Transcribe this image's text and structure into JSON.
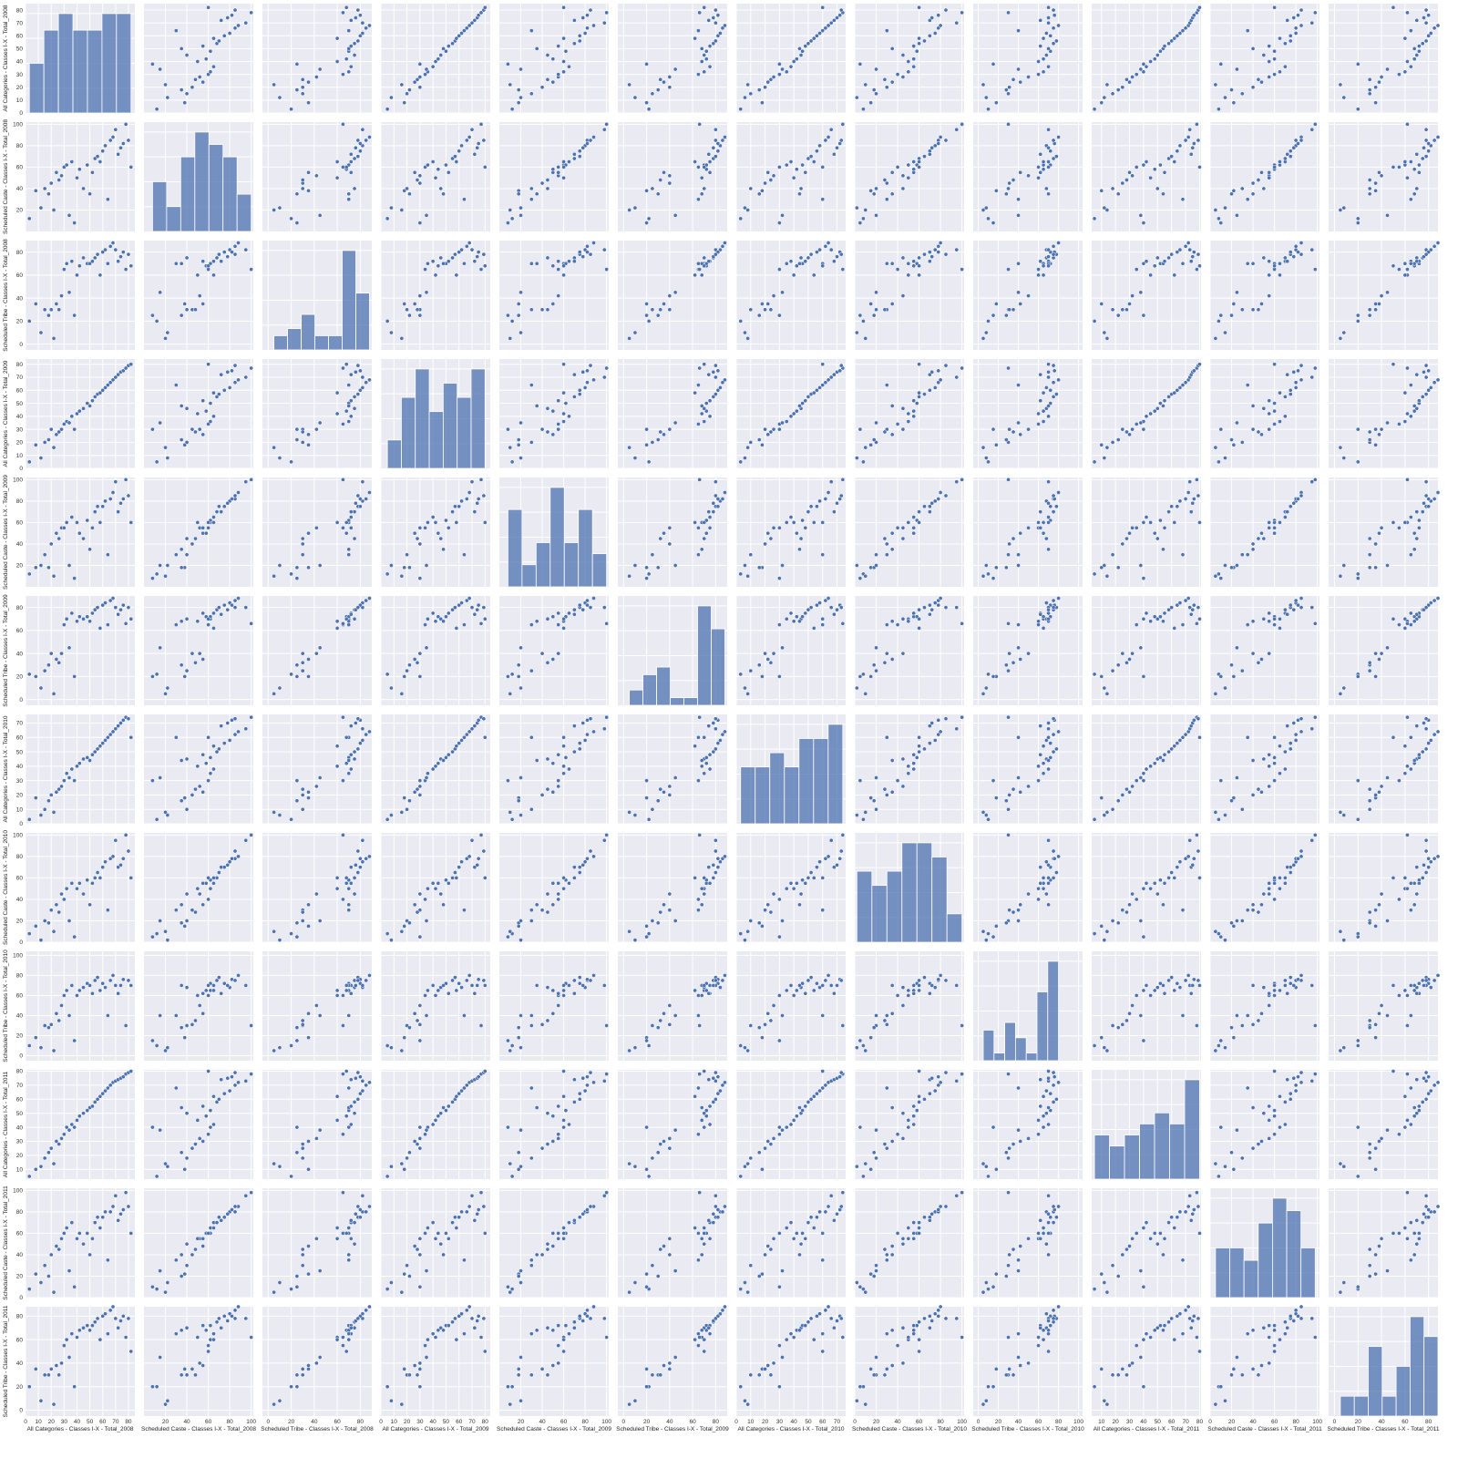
{
  "chart_data": {
    "type": "scatter",
    "title": "",
    "diag_kind": "histogram",
    "grid": true,
    "variables": [
      {
        "label": "All Categories - Classes I-X - Total_2008",
        "lim": [
          0,
          85
        ],
        "ticks": [
          0,
          10,
          20,
          30,
          40,
          50,
          60,
          70,
          80
        ]
      },
      {
        "label": "Scheduled Caste - Classes I-X - Total_2008",
        "lim": [
          0,
          102
        ],
        "ticks": [
          20,
          40,
          60,
          80,
          100
        ]
      },
      {
        "label": "Scheduled Tribe - Classes I-X - Total_2008",
        "lim": [
          -5,
          90
        ],
        "ticks": [
          0,
          20,
          40,
          60,
          80
        ]
      },
      {
        "label": "All Categories - Classes I-X - Total_2009",
        "lim": [
          0,
          84
        ],
        "ticks": [
          0,
          10,
          20,
          30,
          40,
          50,
          60,
          70,
          80
        ]
      },
      {
        "label": "Scheduled Caste - Classes I-X - Total_2009",
        "lim": [
          0,
          102
        ],
        "ticks": [
          20,
          40,
          60,
          80,
          100
        ]
      },
      {
        "label": "Scheduled Tribe - Classes I-X - Total_2009",
        "lim": [
          -5,
          90
        ],
        "ticks": [
          0,
          20,
          40,
          60,
          80
        ]
      },
      {
        "label": "All Categories - Classes I-X - Total_2010",
        "lim": [
          0,
          76
        ],
        "ticks": [
          0,
          10,
          20,
          30,
          40,
          50,
          60,
          70
        ]
      },
      {
        "label": "Scheduled Caste - Classes I-X - Total_2010",
        "lim": [
          0,
          102
        ],
        "ticks": [
          0,
          20,
          40,
          60,
          80,
          100
        ]
      },
      {
        "label": "Scheduled Tribe - Classes I-X - Total_2010",
        "lim": [
          -5,
          104
        ],
        "ticks": [
          0,
          20,
          40,
          60,
          80,
          100
        ]
      },
      {
        "label": "All Categories - Classes I-X - Total_2011",
        "lim": [
          3,
          81
        ],
        "ticks": [
          10,
          20,
          30,
          40,
          50,
          60,
          70,
          80
        ]
      },
      {
        "label": "Scheduled Caste - Classes I-X - Total_2011",
        "lim": [
          0,
          102
        ],
        "ticks": [
          0,
          20,
          40,
          60,
          80,
          100
        ]
      },
      {
        "label": "Scheduled Tribe - Classes I-X - Total_2011",
        "lim": [
          -5,
          88
        ],
        "ticks": [
          0,
          20,
          40,
          60,
          80
        ]
      }
    ],
    "data": [
      [
        3,
        12,
        20,
        5,
        12,
        22,
        3,
        8,
        10,
        5,
        8,
        20
      ],
      [
        8,
        38,
        35,
        18,
        18,
        20,
        18,
        15,
        18,
        10,
        22,
        35
      ],
      [
        12,
        22,
        10,
        8,
        20,
        10,
        6,
        2,
        8,
        12,
        14,
        8
      ],
      [
        15,
        40,
        30,
        20,
        30,
        25,
        10,
        20,
        30,
        18,
        30,
        30
      ],
      [
        18,
        35,
        25,
        22,
        18,
        30,
        16,
        18,
        28,
        22,
        20,
        30
      ],
      [
        20,
        45,
        30,
        30,
        40,
        40,
        20,
        30,
        31,
        25,
        40,
        35
      ],
      [
        22,
        20,
        5,
        16,
        10,
        5,
        8,
        10,
        5,
        14,
        5,
        5
      ],
      [
        24,
        55,
        35,
        26,
        50,
        35,
        22,
        35,
        42,
        30,
        48,
        38
      ],
      [
        26,
        48,
        30,
        28,
        45,
        32,
        24,
        28,
        35,
        28,
        45,
        30
      ],
      [
        28,
        52,
        42,
        30,
        55,
        40,
        26,
        45,
        50,
        32,
        55,
        40
      ],
      [
        30,
        60,
        65,
        34,
        55,
        65,
        30,
        40,
        60,
        35,
        60,
        55
      ],
      [
        32,
        62,
        70,
        36,
        60,
        70,
        35,
        50,
        65,
        40,
        65,
        60
      ],
      [
        34,
        15,
        45,
        35,
        20,
        45,
        32,
        20,
        40,
        38,
        25,
        45
      ],
      [
        36,
        65,
        72,
        40,
        65,
        75,
        38,
        55,
        70,
        42,
        70,
        65
      ],
      [
        38,
        8,
        25,
        30,
        8,
        20,
        30,
        5,
        15,
        40,
        10,
        20
      ],
      [
        40,
        50,
        60,
        42,
        60,
        68,
        40,
        50,
        60,
        45,
        55,
        62
      ],
      [
        42,
        58,
        68,
        44,
        50,
        72,
        42,
        55,
        65,
        48,
        60,
        68
      ],
      [
        45,
        40,
        75,
        46,
        45,
        70,
        45,
        45,
        68,
        50,
        50,
        70
      ],
      [
        48,
        62,
        70,
        50,
        62,
        72,
        46,
        58,
        72,
        52,
        60,
        72
      ],
      [
        50,
        35,
        70,
        48,
        35,
        68,
        44,
        35,
        70,
        54,
        40,
        68
      ],
      [
        52,
        55,
        72,
        52,
        55,
        75,
        48,
        55,
        62,
        55,
        55,
        72
      ],
      [
        54,
        68,
        75,
        55,
        70,
        78,
        50,
        60,
        75,
        58,
        70,
        75
      ],
      [
        56,
        70,
        78,
        57,
        75,
        80,
        52,
        65,
        78,
        60,
        75,
        78
      ],
      [
        58,
        65,
        60,
        58,
        60,
        62,
        54,
        60,
        65,
        62,
        65,
        60
      ],
      [
        60,
        75,
        80,
        60,
        75,
        82,
        56,
        70,
        72,
        64,
        75,
        80
      ],
      [
        62,
        80,
        82,
        62,
        80,
        84,
        58,
        75,
        68,
        66,
        80,
        82
      ],
      [
        64,
        30,
        70,
        64,
        30,
        65,
        60,
        30,
        40,
        68,
        35,
        65
      ],
      [
        66,
        85,
        85,
        66,
        82,
        86,
        62,
        78,
        75,
        70,
        80,
        85
      ],
      [
        68,
        88,
        88,
        68,
        88,
        88,
        64,
        80,
        80,
        72,
        85,
        88
      ],
      [
        70,
        95,
        82,
        70,
        98,
        80,
        66,
        95,
        70,
        73,
        95,
        78
      ],
      [
        72,
        72,
        72,
        72,
        70,
        74,
        68,
        70,
        62,
        74,
        72,
        70
      ],
      [
        74,
        78,
        76,
        74,
        78,
        78,
        70,
        72,
        70,
        75,
        78,
        76
      ],
      [
        76,
        82,
        80,
        75,
        82,
        82,
        72,
        78,
        76,
        76,
        82,
        80
      ],
      [
        78,
        100,
        65,
        77,
        100,
        66,
        74,
        100,
        30,
        78,
        98,
        62
      ],
      [
        80,
        85,
        78,
        79,
        85,
        80,
        73,
        85,
        75,
        79,
        85,
        78
      ],
      [
        82,
        60,
        68,
        80,
        60,
        70,
        60,
        60,
        70,
        80,
        60,
        50
      ]
    ]
  }
}
